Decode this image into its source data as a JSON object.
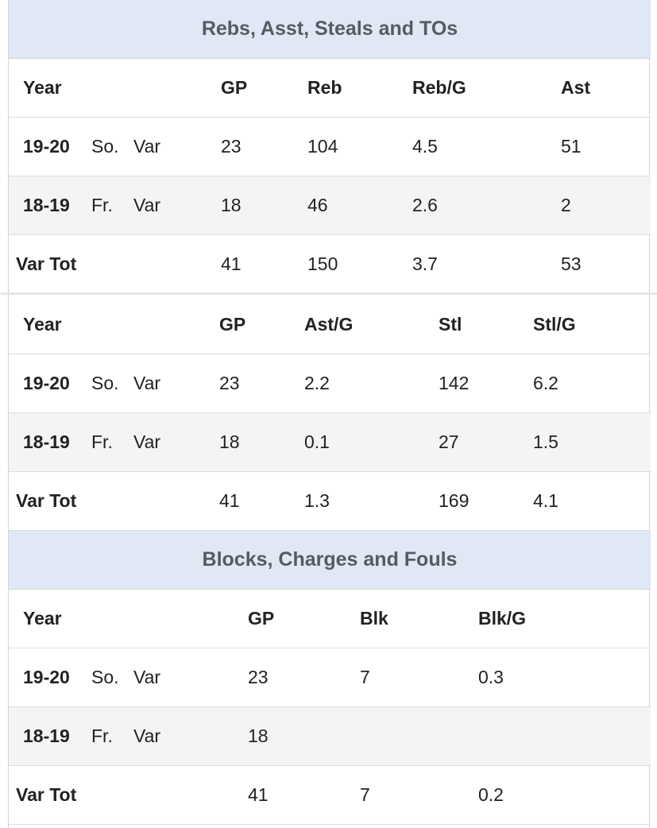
{
  "sections": {
    "rebs": {
      "title": "Rebs, Asst, Steals and TOs"
    },
    "blocks": {
      "title": "Blocks, Charges and Fouls"
    }
  },
  "table1": {
    "headers": [
      "Year",
      "GP",
      "Reb",
      "Reb/G",
      "Ast"
    ],
    "rows": [
      {
        "year": "19-20",
        "class": "So.",
        "level": "Var",
        "gp": "23",
        "c1": "104",
        "c2": "4.5",
        "c3": "51"
      },
      {
        "year": "18-19",
        "class": "Fr.",
        "level": "Var",
        "gp": "18",
        "c1": "46",
        "c2": "2.6",
        "c3": "2"
      }
    ],
    "total": {
      "label": "Var Tot",
      "gp": "41",
      "c1": "150",
      "c2": "3.7",
      "c3": "53"
    }
  },
  "table2": {
    "headers": [
      "Year",
      "GP",
      "Ast/G",
      "Stl",
      "Stl/G"
    ],
    "rows": [
      {
        "year": "19-20",
        "class": "So.",
        "level": "Var",
        "gp": "23",
        "c1": "2.2",
        "c2": "142",
        "c3": "6.2"
      },
      {
        "year": "18-19",
        "class": "Fr.",
        "level": "Var",
        "gp": "18",
        "c1": "0.1",
        "c2": "27",
        "c3": "1.5"
      }
    ],
    "total": {
      "label": "Var Tot",
      "gp": "41",
      "c1": "1.3",
      "c2": "169",
      "c3": "4.1"
    }
  },
  "table3": {
    "headers": [
      "Year",
      "GP",
      "Blk",
      "Blk/G"
    ],
    "rows": [
      {
        "year": "19-20",
        "class": "So.",
        "level": "Var",
        "gp": "23",
        "c1": "7",
        "c2": "0.3"
      },
      {
        "year": "18-19",
        "class": "Fr.",
        "level": "Var",
        "gp": "18",
        "c1": "",
        "c2": ""
      }
    ],
    "total": {
      "label": "Var Tot",
      "gp": "41",
      "c1": "7",
      "c2": "0.2"
    }
  }
}
